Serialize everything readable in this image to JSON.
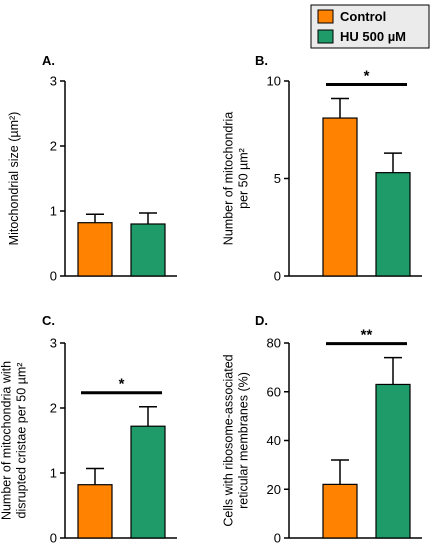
{
  "colors": {
    "control": "#FF8200",
    "hu": "#1F9B6A",
    "axis": "#000000"
  },
  "legend": {
    "items": [
      {
        "label": "Control",
        "color": "#FF8200"
      },
      {
        "label": "HU 500 µM",
        "color": "#1F9B6A"
      }
    ]
  },
  "chart_data": [
    {
      "type": "bar",
      "panel": "A.",
      "title": "",
      "ylabel_lines": [
        "Mitochondrial size (µm²)"
      ],
      "ylim": [
        0,
        3
      ],
      "yticks": [
        0,
        1,
        2,
        3
      ],
      "categories": [
        "Control",
        "HU 500 µM"
      ],
      "values": [
        0.82,
        0.8
      ],
      "errors": [
        0.13,
        0.17
      ],
      "significance": ""
    },
    {
      "type": "bar",
      "panel": "B.",
      "title": "",
      "ylabel_lines": [
        "Number of mitochondria",
        "per 50 µm²"
      ],
      "ylim": [
        0,
        10
      ],
      "yticks": [
        0,
        5,
        10
      ],
      "categories": [
        "Control",
        "HU 500 µM"
      ],
      "values": [
        8.1,
        5.3
      ],
      "errors": [
        1.0,
        1.0
      ],
      "significance": "*"
    },
    {
      "type": "bar",
      "panel": "C.",
      "title": "",
      "ylabel_lines": [
        "Number of mitochondria with",
        "disrupted cristae per 50 µm²"
      ],
      "ylim": [
        0,
        3
      ],
      "yticks": [
        0,
        1,
        2,
        3
      ],
      "categories": [
        "Control",
        "HU 500 µM"
      ],
      "values": [
        0.82,
        1.72
      ],
      "errors": [
        0.25,
        0.3
      ],
      "significance": "*"
    },
    {
      "type": "bar",
      "panel": "D.",
      "title": "",
      "ylabel_lines": [
        "Cells with ribosome-associated",
        "reticular membranes (%)"
      ],
      "ylim": [
        0,
        80
      ],
      "yticks": [
        0,
        20,
        40,
        60,
        80
      ],
      "categories": [
        "Control",
        "HU 500 µM"
      ],
      "values": [
        22,
        63
      ],
      "errors": [
        10,
        11
      ],
      "significance": "**"
    }
  ]
}
